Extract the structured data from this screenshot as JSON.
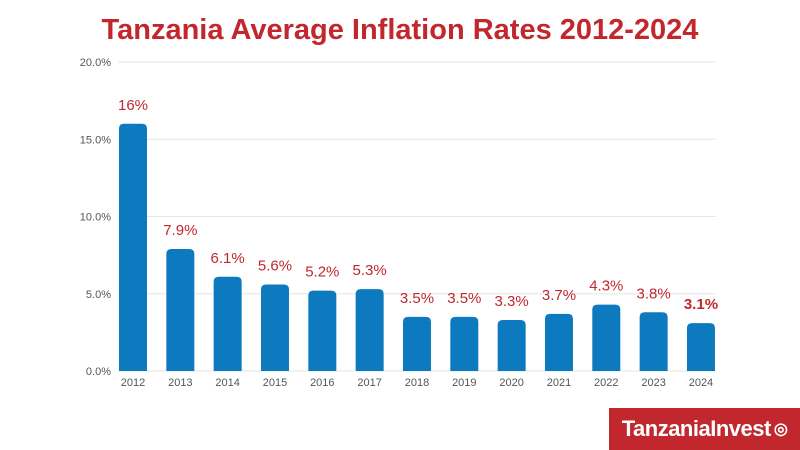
{
  "chart_data": {
    "type": "bar",
    "title": "Tanzania Average Inflation Rates 2012-2024",
    "categories": [
      "2012",
      "2013",
      "2014",
      "2015",
      "2016",
      "2017",
      "2018",
      "2019",
      "2020",
      "2021",
      "2022",
      "2023",
      "2024"
    ],
    "values": [
      16.0,
      7.9,
      6.1,
      5.6,
      5.2,
      5.3,
      3.5,
      3.5,
      3.3,
      3.7,
      4.3,
      3.8,
      3.1
    ],
    "data_labels": [
      "16%",
      "7.9%",
      "6.1%",
      "5.6%",
      "5.2%",
      "5.3%",
      "3.5%",
      "3.5%",
      "3.3%",
      "3.7%",
      "4.3%",
      "3.8%",
      "3.1%"
    ],
    "yticks": [
      "0.0%",
      "5.0%",
      "10.0%",
      "15.0%",
      "20.0%"
    ],
    "ylim": [
      0,
      20
    ],
    "xlabel": "",
    "ylabel": "",
    "grid": true,
    "bar_color": "#0d7abf",
    "label_color": "#c1272d"
  },
  "logo": {
    "text": "TanzaniaInvest"
  }
}
